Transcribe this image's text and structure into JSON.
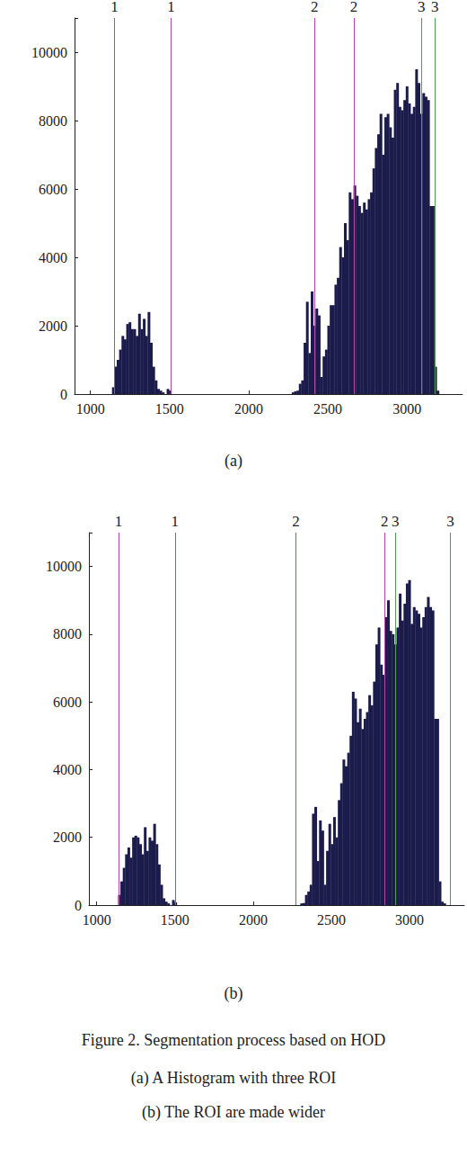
{
  "chart_data": [
    {
      "type": "bar",
      "title": "(a)",
      "color": "#1c1c4c",
      "grid": false,
      "xlim": [
        900,
        3350
      ],
      "xticks": [
        1000,
        1500,
        2000,
        2500,
        3000
      ],
      "ylim": [
        0,
        11000
      ],
      "yticks": [
        0,
        2000,
        4000,
        6000,
        8000,
        10000
      ],
      "x": [
        1145,
        1160,
        1175,
        1190,
        1205,
        1220,
        1235,
        1250,
        1265,
        1280,
        1295,
        1310,
        1325,
        1340,
        1355,
        1370,
        1385,
        1400,
        1415,
        1430,
        1445,
        1460,
        1490,
        1505,
        2280,
        2295,
        2310,
        2325,
        2340,
        2355,
        2370,
        2385,
        2400,
        2415,
        2430,
        2445,
        2460,
        2475,
        2490,
        2505,
        2520,
        2535,
        2550,
        2565,
        2580,
        2595,
        2610,
        2625,
        2640,
        2655,
        2670,
        2685,
        2700,
        2715,
        2730,
        2745,
        2760,
        2775,
        2790,
        2805,
        2820,
        2835,
        2850,
        2865,
        2880,
        2895,
        2910,
        2925,
        2940,
        2955,
        2970,
        2985,
        3000,
        3015,
        3030,
        3045,
        3060,
        3075,
        3090,
        3105,
        3120,
        3135,
        3150,
        3165,
        3180,
        3195
      ],
      "values": [
        200,
        800,
        1000,
        1300,
        1700,
        1600,
        2050,
        2100,
        1900,
        1900,
        1700,
        2350,
        1900,
        2200,
        1700,
        2400,
        1500,
        800,
        400,
        150,
        100,
        50,
        150,
        100,
        50,
        80,
        100,
        300,
        400,
        1500,
        2700,
        1200,
        3000,
        2000,
        2500,
        2300,
        500,
        1100,
        1300,
        2000,
        2600,
        2600,
        3200,
        3400,
        4300,
        4000,
        5000,
        4500,
        5900,
        5700,
        6100,
        5800,
        5500,
        5300,
        5600,
        5400,
        5700,
        5900,
        6600,
        7200,
        7600,
        8200,
        7000,
        8100,
        8200,
        7800,
        7500,
        8900,
        9100,
        8400,
        8300,
        8600,
        9000,
        8500,
        8200,
        8400,
        9500,
        9100,
        8200,
        8800,
        8700,
        8600,
        5500,
        5500,
        800,
        100
      ],
      "annotations": [
        {
          "x": 1153,
          "label": "1",
          "color": "#b048b0"
        },
        {
          "x": 1509,
          "label": "1",
          "color": "#b048b0"
        },
        {
          "x": 2415,
          "label": "2",
          "color": "#b048b0"
        },
        {
          "x": 2664,
          "label": "2",
          "color": "#b048b0"
        },
        {
          "x": 3090,
          "label": "3",
          "color": "#4ea04e"
        },
        {
          "x": 3175,
          "label": "3",
          "color": "#4ea04e"
        }
      ]
    },
    {
      "type": "bar",
      "title": "(b)",
      "color": "#1c1c4c",
      "grid": false,
      "xlim": [
        950,
        3350
      ],
      "xticks": [
        1000,
        1500,
        2000,
        2500,
        3000
      ],
      "ylim": [
        0,
        11000
      ],
      "yticks": [
        0,
        2000,
        4000,
        6000,
        8000,
        10000
      ],
      "x": [
        1145,
        1160,
        1175,
        1190,
        1205,
        1220,
        1235,
        1250,
        1265,
        1280,
        1295,
        1310,
        1325,
        1340,
        1355,
        1370,
        1385,
        1400,
        1415,
        1430,
        1445,
        1460,
        1490,
        1505,
        2310,
        2325,
        2340,
        2355,
        2370,
        2385,
        2400,
        2415,
        2430,
        2445,
        2460,
        2475,
        2490,
        2505,
        2520,
        2535,
        2550,
        2565,
        2580,
        2595,
        2610,
        2625,
        2640,
        2655,
        2670,
        2685,
        2700,
        2715,
        2730,
        2745,
        2760,
        2775,
        2790,
        2805,
        2820,
        2835,
        2850,
        2865,
        2880,
        2895,
        2910,
        2925,
        2940,
        2955,
        2970,
        2985,
        3000,
        3015,
        3030,
        3045,
        3060,
        3075,
        3090,
        3105,
        3120,
        3135,
        3150,
        3165,
        3180,
        3195,
        3210,
        3225
      ],
      "values": [
        300,
        700,
        1100,
        1500,
        1700,
        1400,
        2000,
        2050,
        2000,
        1800,
        1500,
        2300,
        1600,
        2000,
        1900,
        2400,
        1800,
        1200,
        600,
        200,
        100,
        50,
        150,
        80,
        50,
        60,
        300,
        400,
        600,
        2700,
        2900,
        1300,
        2500,
        2200,
        600,
        1600,
        2400,
        1800,
        2600,
        2000,
        3100,
        3600,
        4300,
        4100,
        4500,
        5000,
        6300,
        6100,
        5400,
        5800,
        5200,
        5500,
        5700,
        6200,
        5900,
        6600,
        7700,
        8200,
        7100,
        6800,
        8500,
        9000,
        8100,
        8000,
        7700,
        8200,
        9200,
        8400,
        8900,
        9500,
        9600,
        8300,
        8800,
        8700,
        8600,
        8200,
        8500,
        8800,
        9100,
        8800,
        8700,
        5500,
        5500,
        700,
        100,
        50
      ],
      "annotations": [
        {
          "x": 1140,
          "label": "1",
          "color": "#b048b0"
        },
        {
          "x": 1500,
          "label": "1",
          "color": "#b048b0"
        },
        {
          "x": 2273,
          "label": "2",
          "color": "#b048b0"
        },
        {
          "x": 2841,
          "label": "2",
          "color": "#b048b0"
        },
        {
          "x": 2909,
          "label": "3",
          "color": "#4ea04e"
        },
        {
          "x": 3261,
          "label": "3",
          "color": "#4ea04e"
        }
      ]
    }
  ],
  "caption": [
    "Figure 2. Segmentation process based on HOD",
    "(a) A Histogram with three ROI",
    "(b) The ROI are made wider"
  ]
}
